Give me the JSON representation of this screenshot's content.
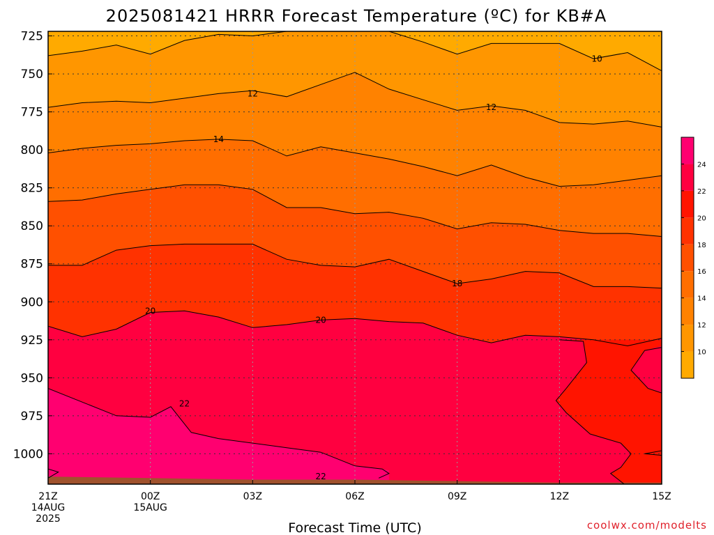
{
  "chart_data": {
    "type": "heatmap",
    "title": "2025081421 HRRR Forecast Temperature (ºC) for KB#A",
    "xlabel": "Forecast Time (UTC)",
    "ylabel": "",
    "x_ticks": [
      {
        "hour": 0,
        "lines": [
          "21Z",
          "14AUG",
          "2025"
        ]
      },
      {
        "hour": 3,
        "lines": [
          "00Z",
          "15AUG"
        ]
      },
      {
        "hour": 6,
        "lines": [
          "03Z"
        ]
      },
      {
        "hour": 9,
        "lines": [
          "06Z"
        ]
      },
      {
        "hour": 12,
        "lines": [
          "09Z"
        ]
      },
      {
        "hour": 15,
        "lines": [
          "12Z"
        ]
      },
      {
        "hour": 18,
        "lines": [
          "15Z"
        ]
      }
    ],
    "xlim": [
      0,
      18
    ],
    "y_axis_units": "hPa",
    "y_ticks": [
      725,
      750,
      775,
      800,
      825,
      850,
      875,
      900,
      925,
      950,
      975,
      1000
    ],
    "ylim": [
      1020,
      722
    ],
    "grid": true,
    "colorbar": {
      "levels": [
        8,
        10,
        12,
        14,
        16,
        18,
        20,
        22,
        24,
        26
      ],
      "labels": [
        "10",
        "12",
        "14",
        "16",
        "18",
        "20",
        "22",
        "24"
      ],
      "colors": [
        "#ffaa00",
        "#ff9600",
        "#ff8200",
        "#ff6e00",
        "#ff5000",
        "#ff3200",
        "#ff1400",
        "#ff0040",
        "#ff0070"
      ]
    },
    "contours": [
      {
        "level": 10,
        "label": "10",
        "points": [
          [
            0,
            738
          ],
          [
            1,
            735
          ],
          [
            2,
            731
          ],
          [
            3,
            737
          ],
          [
            4,
            728
          ],
          [
            5,
            724
          ],
          [
            6,
            725
          ],
          [
            7,
            722
          ],
          [
            8,
            720
          ],
          [
            10,
            722
          ],
          [
            11,
            729
          ],
          [
            12,
            737
          ],
          [
            13,
            730
          ],
          [
            14,
            730
          ],
          [
            15,
            730
          ],
          [
            16,
            740
          ],
          [
            17,
            736
          ],
          [
            18,
            748
          ]
        ]
      },
      {
        "level": 12,
        "label": "12",
        "points": [
          [
            0,
            772
          ],
          [
            1,
            769
          ],
          [
            2,
            768
          ],
          [
            3,
            769
          ],
          [
            4,
            766
          ],
          [
            5,
            763
          ],
          [
            6,
            761
          ],
          [
            7,
            765
          ],
          [
            8,
            757
          ],
          [
            9,
            749
          ],
          [
            10,
            760
          ],
          [
            11,
            767
          ],
          [
            12,
            774
          ],
          [
            13,
            771
          ],
          [
            14,
            774
          ],
          [
            15,
            782
          ],
          [
            16,
            783
          ],
          [
            17,
            781
          ],
          [
            18,
            785
          ]
        ]
      },
      {
        "level": 14,
        "label": "14",
        "points": [
          [
            0,
            802
          ],
          [
            1,
            799
          ],
          [
            2,
            797
          ],
          [
            3,
            796
          ],
          [
            4,
            794
          ],
          [
            5,
            793
          ],
          [
            6,
            794
          ],
          [
            7,
            804
          ],
          [
            8,
            798
          ],
          [
            9,
            802
          ],
          [
            10,
            806
          ],
          [
            11,
            811
          ],
          [
            12,
            817
          ],
          [
            13,
            810
          ],
          [
            14,
            818
          ],
          [
            15,
            824
          ],
          [
            16,
            823
          ],
          [
            17,
            820
          ],
          [
            18,
            817
          ]
        ]
      },
      {
        "level": 16,
        "label": "",
        "points": [
          [
            0,
            834
          ],
          [
            1,
            833
          ],
          [
            2,
            829
          ],
          [
            3,
            826
          ],
          [
            4,
            823
          ],
          [
            5,
            823
          ],
          [
            6,
            826
          ],
          [
            7,
            838
          ],
          [
            8,
            838
          ],
          [
            9,
            842
          ],
          [
            10,
            841
          ],
          [
            11,
            845
          ],
          [
            12,
            852
          ],
          [
            13,
            848
          ],
          [
            14,
            849
          ],
          [
            15,
            853
          ],
          [
            16,
            855
          ],
          [
            17,
            855
          ],
          [
            18,
            857
          ]
        ]
      },
      {
        "level": 18,
        "label": "18",
        "points": [
          [
            0,
            876
          ],
          [
            1,
            876
          ],
          [
            2,
            866
          ],
          [
            3,
            863
          ],
          [
            4,
            862
          ],
          [
            5,
            862
          ],
          [
            6,
            862
          ],
          [
            7,
            872
          ],
          [
            8,
            876
          ],
          [
            9,
            877
          ],
          [
            10,
            872
          ],
          [
            11,
            880
          ],
          [
            12,
            888
          ],
          [
            13,
            885
          ],
          [
            14,
            880
          ],
          [
            15,
            881
          ],
          [
            16,
            890
          ],
          [
            17,
            890
          ],
          [
            18,
            891
          ]
        ]
      },
      {
        "level": 20,
        "label": "20",
        "points": [
          [
            0,
            916
          ],
          [
            1,
            923
          ],
          [
            2,
            918
          ],
          [
            3,
            907
          ],
          [
            4,
            906
          ],
          [
            5,
            910
          ],
          [
            6,
            917
          ],
          [
            7,
            915
          ],
          [
            8,
            912
          ],
          [
            9,
            911
          ],
          [
            10,
            913
          ],
          [
            11,
            914
          ],
          [
            12,
            922
          ],
          [
            13,
            927
          ],
          [
            14,
            922
          ],
          [
            15,
            923
          ],
          [
            16,
            925
          ],
          [
            17,
            929
          ],
          [
            18,
            924
          ]
        ]
      }
    ],
    "contour_labels": [
      {
        "text": "10",
        "hour": 16.1,
        "p": 740
      },
      {
        "text": "12",
        "hour": 6.0,
        "p": 763
      },
      {
        "text": "12",
        "hour": 13.0,
        "p": 772
      },
      {
        "text": "14",
        "hour": 5.0,
        "p": 793
      },
      {
        "text": "18",
        "hour": 12.0,
        "p": 888
      },
      {
        "text": "20",
        "hour": 3.0,
        "p": 906
      },
      {
        "text": "20",
        "hour": 8.0,
        "p": 912
      },
      {
        "text": "22",
        "hour": 4.0,
        "p": 967
      },
      {
        "text": "22",
        "hour": 8.0,
        "p": 1015
      }
    ]
  },
  "credit": "coolwx.com/modelts"
}
